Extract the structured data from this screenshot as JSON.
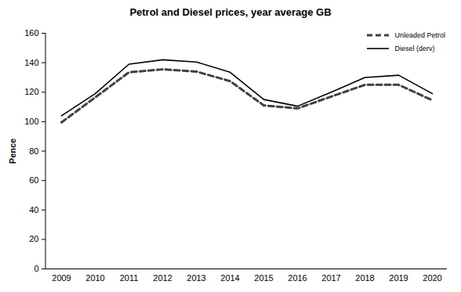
{
  "chart_data": {
    "type": "line",
    "title": "Petrol and Diesel prices, year average GB",
    "y_label": "Pence",
    "categories": [
      "2009",
      "2010",
      "2011",
      "2012",
      "2013",
      "2014",
      "2015",
      "2016",
      "2017",
      "2018",
      "2019",
      "2020"
    ],
    "series": [
      {
        "name": "Unleaded Petrol",
        "color": "#404040",
        "line_style": "dashed",
        "values": [
          99.5,
          116.5,
          133.5,
          135.5,
          134,
          127.5,
          111,
          109,
          117,
          125,
          125,
          114.5
        ]
      },
      {
        "name": "Diesel (derv)",
        "color": "#000000",
        "line_style": "solid",
        "values": [
          104,
          119,
          139,
          142,
          140.5,
          133.5,
          115,
          110.5,
          120,
          130,
          131.5,
          119
        ]
      }
    ],
    "ylim": [
      0,
      160
    ],
    "yticks": [
      0,
      20,
      40,
      60,
      80,
      100,
      120,
      140,
      160
    ],
    "grid": false,
    "legend": "top-right"
  }
}
